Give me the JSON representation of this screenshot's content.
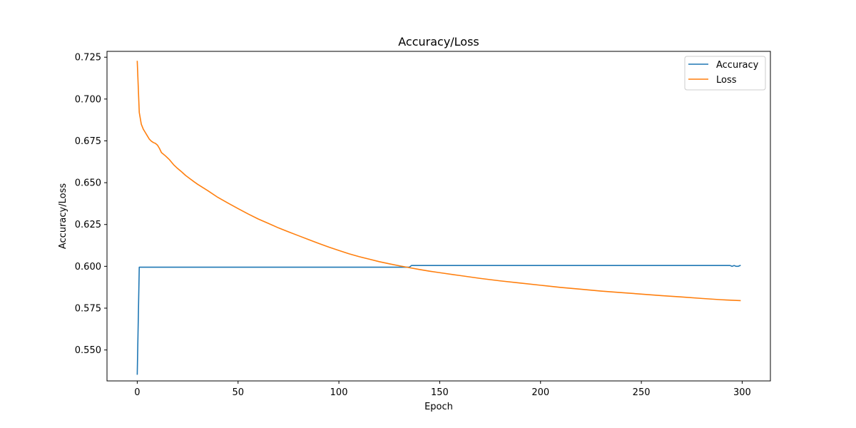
{
  "chart_data": {
    "type": "line",
    "title": "Accuracy/Loss",
    "xlabel": "Epoch",
    "ylabel": "Accuracy/Loss",
    "xlim": [
      -15,
      314
    ],
    "ylim": [
      0.5315,
      0.7285
    ],
    "xticks": [
      0,
      50,
      100,
      150,
      200,
      250,
      300
    ],
    "yticks": [
      0.55,
      0.575,
      0.6,
      0.625,
      0.65,
      0.675,
      0.7,
      0.725
    ],
    "xtick_labels": [
      "0",
      "50",
      "100",
      "150",
      "200",
      "250",
      "300"
    ],
    "ytick_labels": [
      "0.550",
      "0.575",
      "0.600",
      "0.625",
      "0.650",
      "0.675",
      "0.700",
      "0.725"
    ],
    "grid": false,
    "legend": "top-right",
    "series": [
      {
        "name": "Accuracy",
        "color": "#1f77b4",
        "points": [
          [
            0,
            0.5355
          ],
          [
            1,
            0.5995
          ],
          [
            135,
            0.5995
          ],
          [
            136,
            0.6005
          ],
          [
            294,
            0.6005
          ],
          [
            295,
            0.6
          ],
          [
            296,
            0.6005
          ],
          [
            297,
            0.6
          ],
          [
            298,
            0.6
          ],
          [
            299,
            0.6005
          ]
        ]
      },
      {
        "name": "Loss",
        "color": "#ff7f0e",
        "points": [
          [
            0,
            0.7225
          ],
          [
            1,
            0.692
          ],
          [
            2,
            0.685
          ],
          [
            3,
            0.682
          ],
          [
            4,
            0.68
          ],
          [
            5,
            0.678
          ],
          [
            6,
            0.676
          ],
          [
            7,
            0.6748
          ],
          [
            8,
            0.674
          ],
          [
            9,
            0.6735
          ],
          [
            10,
            0.6725
          ],
          [
            11,
            0.6705
          ],
          [
            12,
            0.668
          ],
          [
            14,
            0.666
          ],
          [
            16,
            0.6637
          ],
          [
            18,
            0.6608
          ],
          [
            20,
            0.6585
          ],
          [
            22,
            0.6565
          ],
          [
            24,
            0.6543
          ],
          [
            26,
            0.6525
          ],
          [
            28,
            0.6507
          ],
          [
            30,
            0.649
          ],
          [
            35,
            0.6452
          ],
          [
            40,
            0.6412
          ],
          [
            45,
            0.6378
          ],
          [
            50,
            0.6345
          ],
          [
            55,
            0.6313
          ],
          [
            60,
            0.6283
          ],
          [
            65,
            0.6257
          ],
          [
            70,
            0.623
          ],
          [
            75,
            0.6206
          ],
          [
            80,
            0.6183
          ],
          [
            85,
            0.616
          ],
          [
            90,
            0.6137
          ],
          [
            95,
            0.6115
          ],
          [
            100,
            0.6095
          ],
          [
            105,
            0.6075
          ],
          [
            110,
            0.6058
          ],
          [
            115,
            0.6043
          ],
          [
            120,
            0.6028
          ],
          [
            125,
            0.6015
          ],
          [
            130,
            0.6003
          ],
          [
            135,
            0.5992
          ],
          [
            140,
            0.5981
          ],
          [
            145,
            0.5971
          ],
          [
            150,
            0.5962
          ],
          [
            160,
            0.5945
          ],
          [
            170,
            0.5928
          ],
          [
            180,
            0.5913
          ],
          [
            190,
            0.59
          ],
          [
            200,
            0.5887
          ],
          [
            210,
            0.5874
          ],
          [
            220,
            0.5863
          ],
          [
            230,
            0.5852
          ],
          [
            240,
            0.5843
          ],
          [
            250,
            0.5834
          ],
          [
            260,
            0.5825
          ],
          [
            270,
            0.5817
          ],
          [
            280,
            0.5808
          ],
          [
            290,
            0.58
          ],
          [
            299,
            0.5795
          ]
        ]
      }
    ]
  }
}
